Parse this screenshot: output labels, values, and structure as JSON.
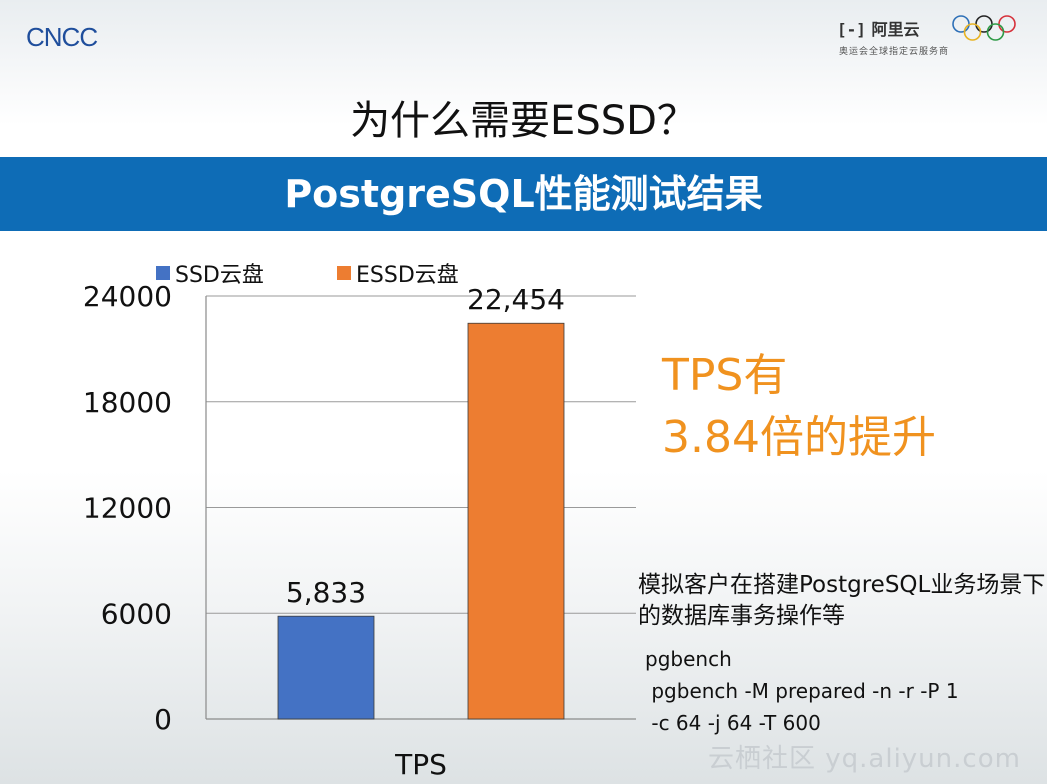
{
  "header": {
    "left_logo": "CNCC",
    "right_logo_brand": "阿里云",
    "right_logo_subtitle": "奥运会全球指定云服务商"
  },
  "slide": {
    "title": "为什么需要ESSD？",
    "banner": "PostgreSQL性能测试结果",
    "callout": [
      "TPS有",
      "3.84倍的提升"
    ],
    "note": "模拟客户在搭建PostgreSQL业务场景下的数据库事务操作等",
    "code_lines": [
      "pgbench",
      " pgbench -M prepared -n -r -P 1",
      " -c 64 -j 64 -T 600"
    ],
    "watermark": "云栖社区 yq.aliyun.com"
  },
  "colors": {
    "banner": "#0e6cb6",
    "callout": "#f0921f",
    "ssd": "#4472c4",
    "essd": "#ed7d31"
  },
  "chart_data": {
    "type": "bar",
    "categories": [
      "TPS"
    ],
    "series": [
      {
        "name": "SSD云盘",
        "values": [
          5833
        ],
        "label": "5,833",
        "color": "#4472c4"
      },
      {
        "name": "ESSD云盘",
        "values": [
          22454
        ],
        "label": "22,454",
        "color": "#ed7d31"
      }
    ],
    "y_ticks": [
      0,
      6000,
      12000,
      18000,
      24000
    ],
    "ylim": [
      0,
      24000
    ],
    "grid": true,
    "legend_position": "top"
  }
}
